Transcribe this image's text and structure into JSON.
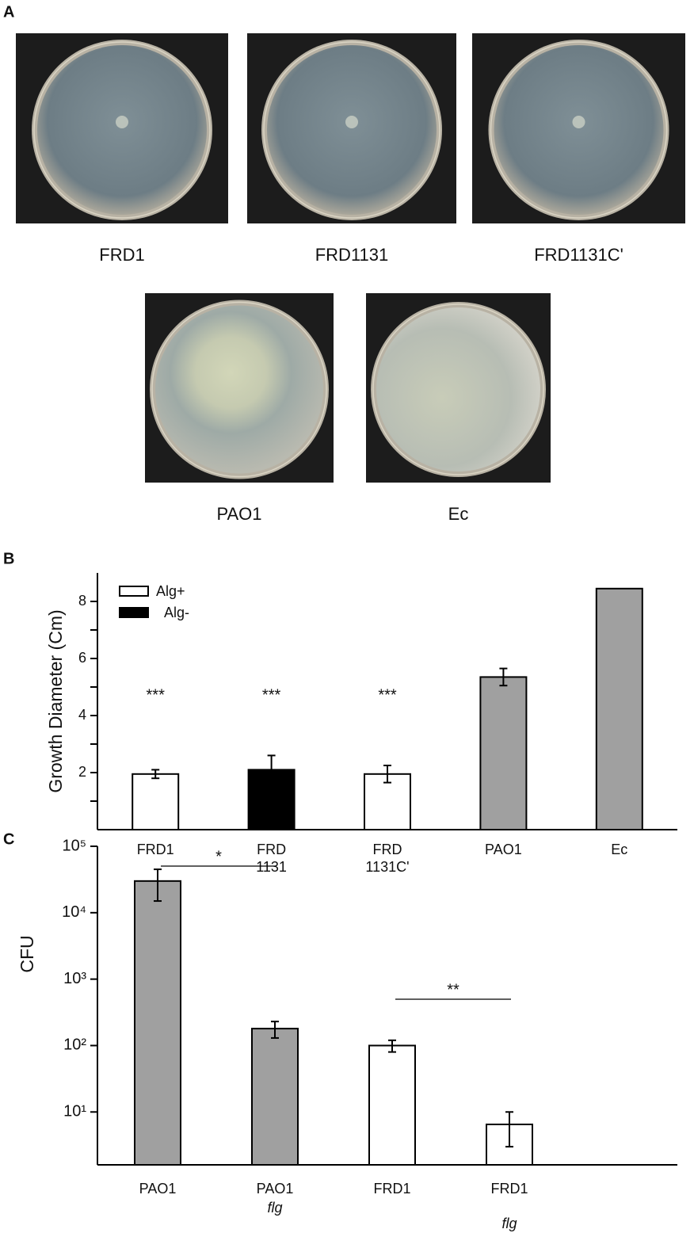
{
  "panel_labels": [
    "A",
    "B",
    "C"
  ],
  "photos": [
    "FRD1",
    "FRD1131",
    "FRD1131C'",
    "PAO1",
    "Ec"
  ],
  "chart_data": [
    {
      "type": "bar",
      "ylabel": "Growth Diameter (Cm)",
      "categories": [
        [
          "FRD1"
        ],
        [
          "FRD",
          "1131"
        ],
        [
          "FRD",
          "1131C'"
        ],
        [
          "PAO1"
        ],
        [
          "Ec"
        ]
      ],
      "values": [
        1.95,
        2.1,
        1.95,
        5.35,
        8.45
      ],
      "errors": [
        0.15,
        0.5,
        0.3,
        0.3,
        null
      ],
      "colors": [
        "#ffffff",
        "#000000",
        "#ffffff",
        "#a0a0a0",
        "#a0a0a0"
      ],
      "annotations": [
        "***",
        "***",
        "***",
        null,
        null
      ],
      "legend": [
        {
          "label": "Alg+",
          "color": "#ffffff"
        },
        {
          "label": "Alg-",
          "color": "#000000"
        }
      ],
      "legend_position": "upper left",
      "ylim": [
        0,
        9
      ],
      "yticks": [
        2,
        4,
        6,
        8
      ],
      "minor_yticks": [
        1,
        3,
        5,
        7
      ],
      "grid": false
    },
    {
      "type": "bar",
      "ylabel": "CFU",
      "log_scale": true,
      "categories": [
        "PAO1",
        "PAO1",
        "FRD1",
        "FRD1"
      ],
      "sublabels": [
        null,
        "flg",
        null,
        "flg"
      ],
      "values": [
        30000,
        180,
        100,
        6.5
      ],
      "errors": [
        15000,
        50,
        20,
        3.5
      ],
      "colors": [
        "#a0a0a0",
        "#a0a0a0",
        "#ffffff",
        "#ffffff"
      ],
      "comparisons": [
        {
          "categories": [
            0,
            1
          ],
          "label": "*"
        },
        {
          "categories": [
            2,
            3
          ],
          "label": "**"
        }
      ],
      "ylim": [
        1.6,
        100000
      ],
      "yticks": [
        {
          "value": 10,
          "label": "10¹"
        },
        {
          "value": 100,
          "label": "10²"
        },
        {
          "value": 1000,
          "label": "10³"
        },
        {
          "value": 10000,
          "label": "10⁴"
        },
        {
          "value": 100000,
          "label": "10⁵"
        }
      ],
      "grid": false
    }
  ]
}
